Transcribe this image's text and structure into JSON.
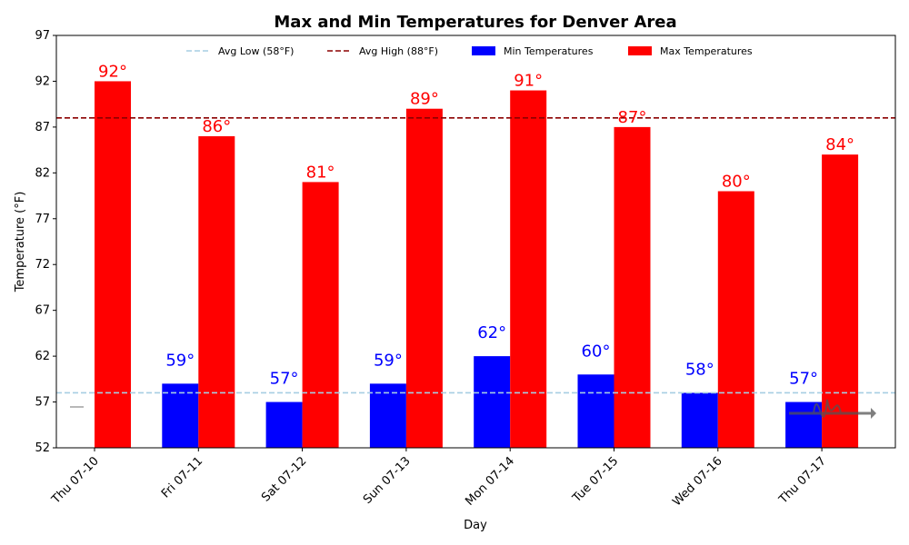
{
  "chart_data": {
    "type": "bar",
    "title": "Max and Min Temperatures for Denver Area",
    "xlabel": "Day",
    "ylabel": "Temperature (°F)",
    "ylim": [
      52,
      97
    ],
    "yticks": [
      52,
      57,
      62,
      67,
      72,
      77,
      82,
      87,
      92,
      97
    ],
    "categories": [
      "Thu 07-10",
      "Fri 07-11",
      "Sat 07-12",
      "Sun 07-13",
      "Mon 07-14",
      "Tue 07-15",
      "Wed 07-16",
      "Thu 07-17"
    ],
    "series": [
      {
        "name": "Min Temperatures",
        "color": "#0000ff",
        "values": [
          null,
          59,
          57,
          59,
          62,
          60,
          58,
          57
        ],
        "labels": [
          "",
          "59°",
          "57°",
          "59°",
          "62°",
          "60°",
          "58°",
          "57°"
        ]
      },
      {
        "name": "Max Temperatures",
        "color": "#ff0000",
        "values": [
          92,
          86,
          81,
          89,
          91,
          87,
          80,
          84
        ],
        "labels": [
          "92°",
          "86°",
          "81°",
          "89°",
          "91°",
          "87°",
          "80°",
          "84°"
        ]
      }
    ],
    "reference_lines": [
      {
        "name": "Avg Low (58°F)",
        "value": 58,
        "color": "#a6cee3",
        "style": "dashed"
      },
      {
        "name": "Avg High (88°F)",
        "value": 88,
        "color": "#8b0000",
        "style": "dashed"
      }
    ],
    "legend": {
      "placement": "top-center",
      "entries": [
        {
          "label": "Avg Low (58°F)",
          "kind": "line",
          "color": "#a6cee3"
        },
        {
          "label": "Avg High (88°F)",
          "kind": "line",
          "color": "#8b0000"
        },
        {
          "label": "Min Temperatures",
          "kind": "patch",
          "color": "#0000ff"
        },
        {
          "label": "Max Temperatures",
          "kind": "patch",
          "color": "#ff0000"
        }
      ]
    },
    "grid": false
  }
}
